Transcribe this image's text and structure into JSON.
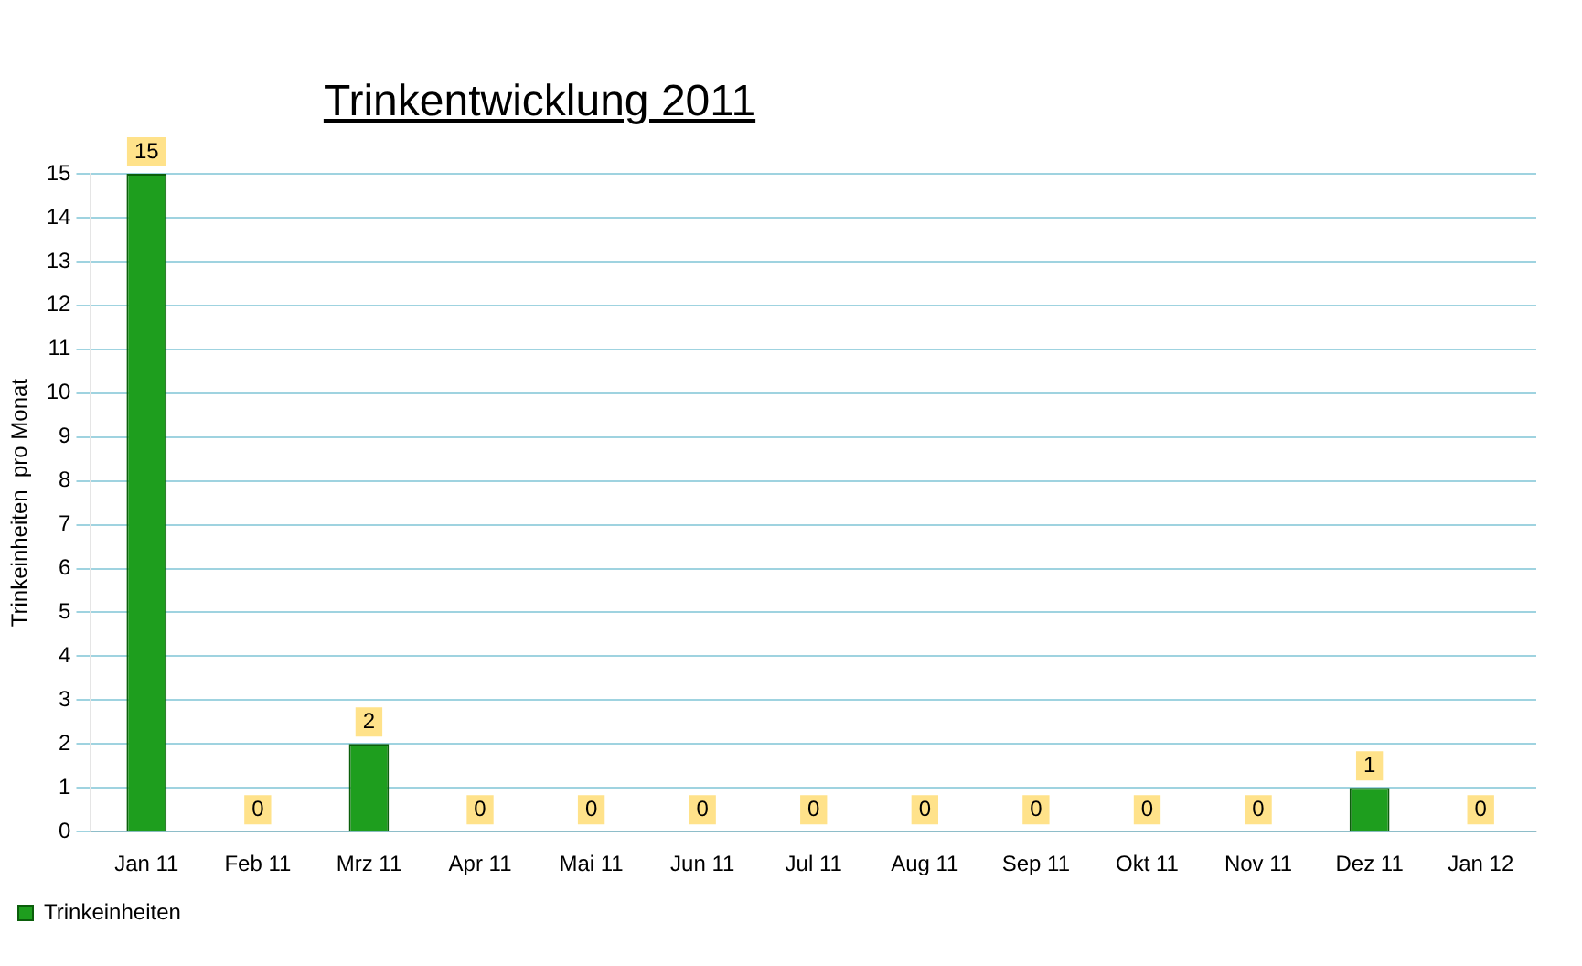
{
  "chart_data": {
    "type": "bar",
    "title": "Trinkentwicklung 2011",
    "ylabel": "Trinkeinheiten  pro Monat",
    "categories": [
      "Jan 11",
      "Feb 11",
      "Mrz 11",
      "Apr 11",
      "Mai 11",
      "Jun 11",
      "Jul 11",
      "Aug 11",
      "Sep 11",
      "Okt 11",
      "Nov 11",
      "Dez 11",
      "Jan 12"
    ],
    "series": [
      {
        "name": "Trinkeinheiten",
        "color": "#1e9e1e",
        "values": [
          15,
          0,
          2,
          0,
          0,
          0,
          0,
          0,
          0,
          0,
          0,
          1,
          0
        ]
      }
    ],
    "ylim": [
      0,
      15
    ],
    "yticks": [
      0,
      1,
      2,
      3,
      4,
      5,
      6,
      7,
      8,
      9,
      10,
      11,
      12,
      13,
      14,
      15
    ],
    "grid": "y",
    "legend": "bottom left",
    "data_labels": true
  }
}
